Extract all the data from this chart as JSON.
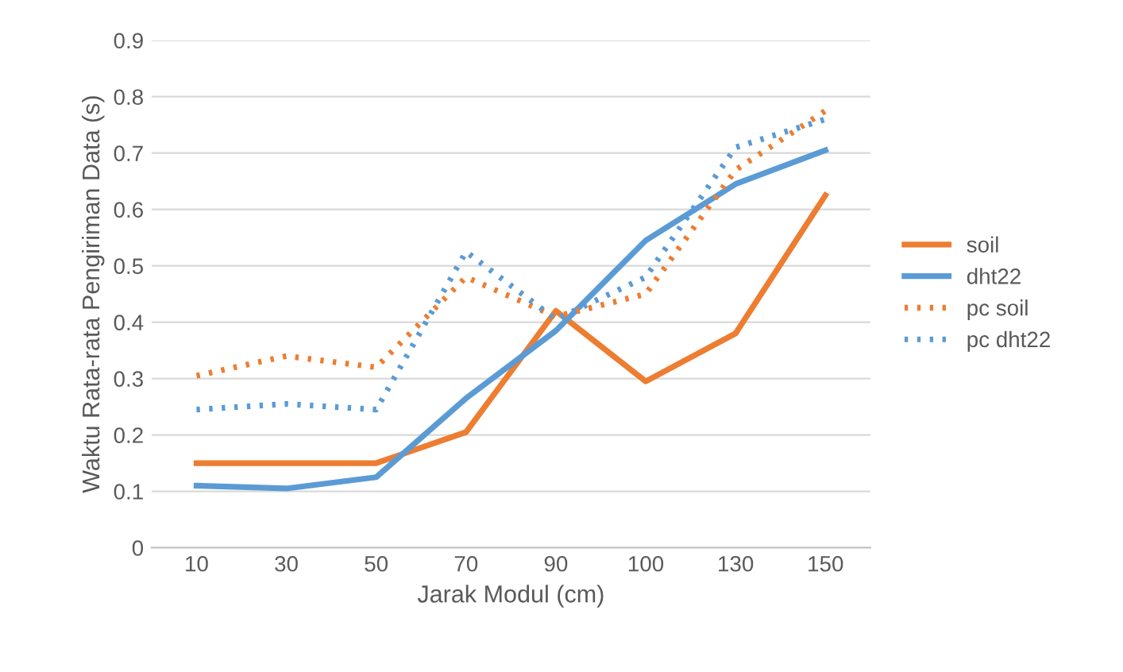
{
  "chart_data": {
    "type": "line",
    "xlabel": "Jarak Modul (cm)",
    "ylabel": "Waktu Rata-rata Pengiriman Data (s)",
    "categories": [
      "10",
      "30",
      "50",
      "70",
      "90",
      "100",
      "130",
      "150"
    ],
    "series": [
      {
        "name": "soil",
        "color": "#ed7d31",
        "line_style": "solid",
        "values": [
          0.15,
          0.15,
          0.15,
          0.205,
          0.42,
          0.295,
          0.38,
          0.625
        ]
      },
      {
        "name": "dht22",
        "color": "#5b9bd5",
        "line_style": "solid",
        "values": [
          0.11,
          0.105,
          0.125,
          0.265,
          0.385,
          0.545,
          0.645,
          0.705
        ]
      },
      {
        "name": "pc soil",
        "color": "#ed7d31",
        "line_style": "dotted",
        "values": [
          0.305,
          0.34,
          0.32,
          0.48,
          0.41,
          0.45,
          0.67,
          0.775
        ]
      },
      {
        "name": "pc dht22",
        "color": "#5b9bd5",
        "line_style": "dotted",
        "values": [
          0.245,
          0.255,
          0.245,
          0.525,
          0.405,
          0.48,
          0.71,
          0.76
        ]
      }
    ],
    "ylim": [
      0,
      0.9
    ],
    "yticks": [
      0,
      0.1,
      0.2,
      0.3,
      0.4,
      0.5,
      0.6,
      0.7,
      0.8,
      0.9
    ],
    "grid": "y",
    "legend": "right"
  }
}
